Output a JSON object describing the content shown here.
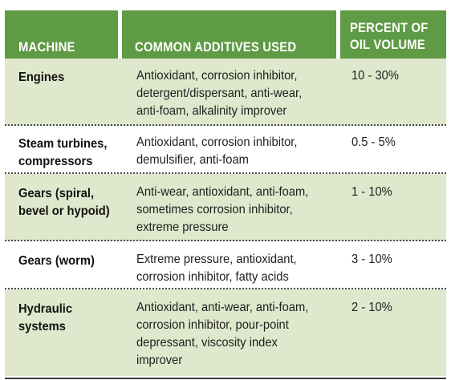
{
  "columns": {
    "machine": "MACHINE",
    "additives": "COMMON ADDITIVES USED",
    "percent_line1": "PERCENT OF",
    "percent_line2": "OIL VOLUME"
  },
  "rows": [
    {
      "machine": [
        "Engines"
      ],
      "additives": [
        "Antioxidant, corrosion inhibitor,",
        "detergent/dispersant, anti-wear,",
        "anti-foam, alkalinity improver"
      ],
      "percent": "10 - 30%"
    },
    {
      "machine": [
        "Steam turbines,",
        "compressors"
      ],
      "additives": [
        "Antioxidant, corrosion inhibitor,",
        "demulsifier, anti-foam"
      ],
      "percent": "0.5 - 5%"
    },
    {
      "machine": [
        "Gears (spiral,",
        "bevel or hypoid)"
      ],
      "additives": [
        "Anti-wear, antioxidant, anti-foam,",
        "sometimes corrosion inhibitor,",
        "extreme pressure"
      ],
      "percent": "1 - 10%"
    },
    {
      "machine": [
        "Gears (worm)"
      ],
      "additives": [
        "Extreme pressure, antioxidant,",
        "corrosion inhibitor, fatty acids"
      ],
      "percent": "3 - 10%"
    },
    {
      "machine": [
        "Hydraulic",
        "systems"
      ],
      "additives": [
        "Antioxidant, anti-wear, anti-foam,",
        "corrosion inhibitor, pour-point",
        "depressant, viscosity index",
        "improver"
      ],
      "percent": "2 - 10%"
    }
  ],
  "colors": {
    "header_green": "#5f9a44",
    "row_green": "#dfe8cc",
    "row_white": "#ffffff"
  }
}
